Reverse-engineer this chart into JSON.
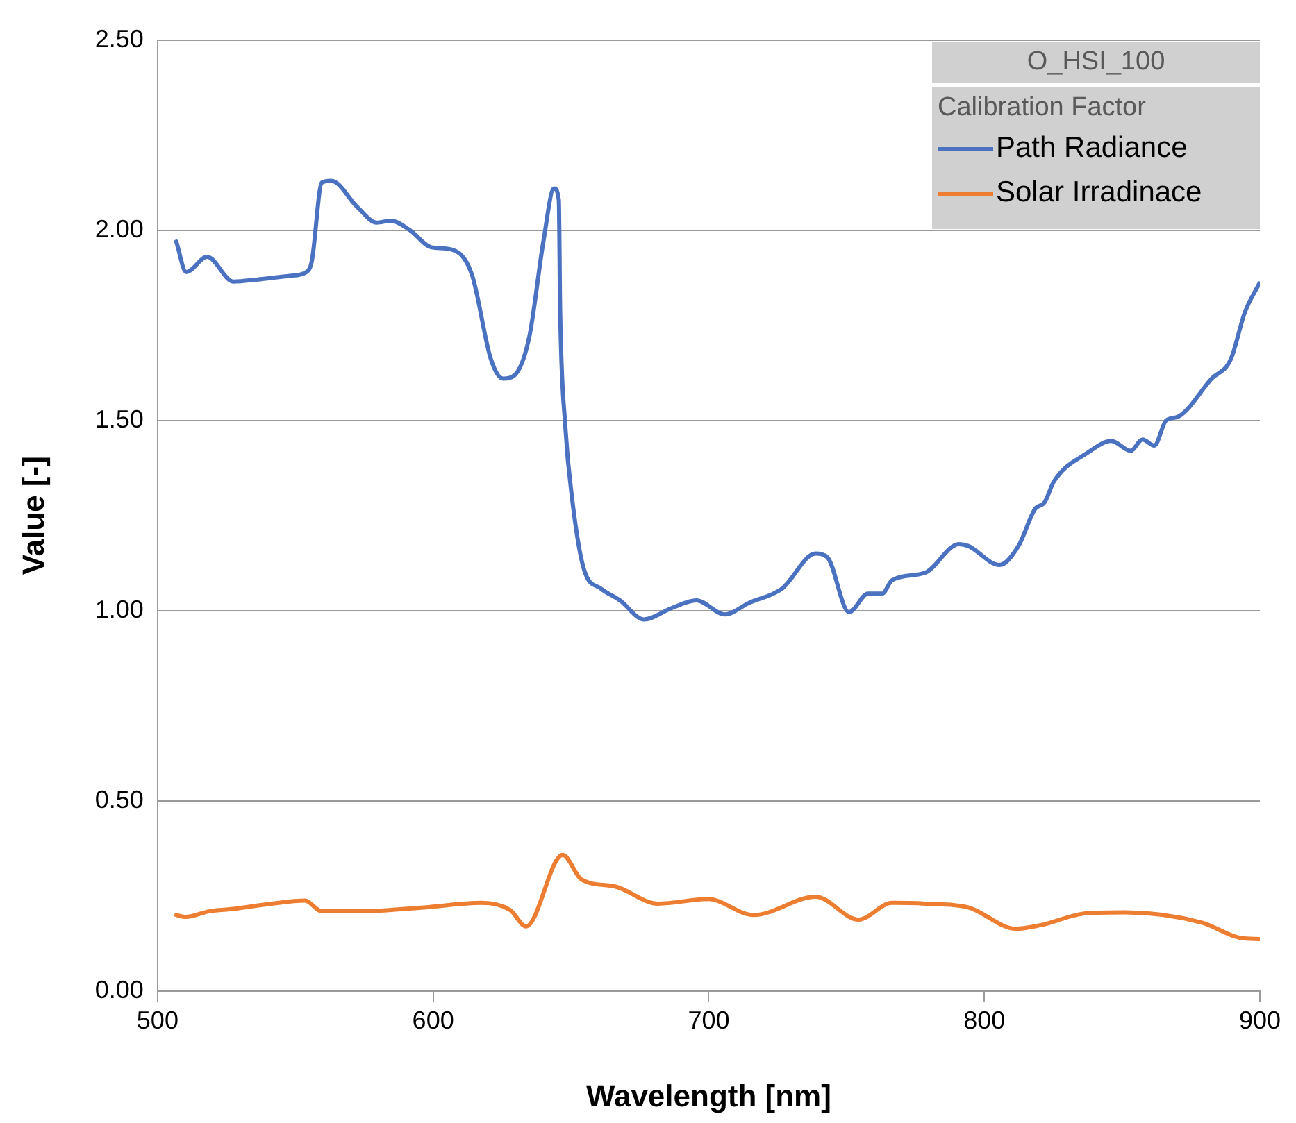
{
  "chart_data": {
    "type": "line",
    "title": "O_HSI_100",
    "legend_title": "Calibration Factor",
    "xlabel": "Wavelength [nm]",
    "ylabel": "Value [-]",
    "xlim": [
      500,
      900
    ],
    "xticks": [
      500,
      600,
      700,
      800,
      900
    ],
    "ylim": [
      0,
      2.5
    ],
    "yticks": [
      {
        "value": 0,
        "label": "0.00"
      },
      {
        "value": 0.5,
        "label": "0.50"
      },
      {
        "value": 1,
        "label": "1.00"
      },
      {
        "value": 1.5,
        "label": "1.50"
      },
      {
        "value": 2,
        "label": "2.00"
      },
      {
        "value": 2.5,
        "label": "2.50"
      }
    ],
    "grid": "y",
    "legend": "top right",
    "marker": "none",
    "line_style": "solid",
    "series": [
      {
        "name": "Path Radiance",
        "color": "#4a72c0",
        "x": [
          506.8,
          510.4,
          518,
          527.5,
          536,
          548,
          554,
          556,
          559.6,
          563,
          572.6,
          579.5,
          584.7,
          591.6,
          599.4,
          606.3,
          614,
          621,
          625.4,
          629.7,
          634.9,
          640,
          643.9,
          645.6,
          646.1,
          647.9,
          650.5,
          654.8,
          660.9,
          667.8,
          676.5,
          686.9,
          695.5,
          705.9,
          714.5,
          726.6,
          738.8,
          743.1,
          750.9,
          757.8,
          763,
          766.5,
          778.6,
          790.8,
          794.2,
          805.5,
          812.4,
          818.4,
          821.9,
          825.3,
          837.5,
          846.1,
          853.1,
          857.4,
          861.7,
          866,
          870.4,
          882.5,
          889.4,
          894.6,
          899.8
        ],
        "values": [
          1.97,
          1.89,
          1.93,
          1.865,
          1.87,
          1.88,
          1.89,
          1.92,
          2.125,
          2.13,
          2.06,
          2.02,
          2.025,
          2.0,
          1.955,
          1.95,
          1.885,
          1.66,
          1.61,
          1.62,
          1.72,
          1.97,
          2.11,
          2.08,
          1.785,
          1.49,
          1.29,
          1.107,
          1.058,
          1.027,
          0.977,
          1.008,
          1.027,
          0.99,
          1.02,
          1.058,
          1.15,
          1.14,
          0.996,
          1.045,
          1.045,
          1.08,
          1.1,
          1.175,
          1.17,
          1.12,
          1.17,
          1.267,
          1.285,
          1.34,
          1.415,
          1.446,
          1.42,
          1.45,
          1.434,
          1.5,
          1.51,
          1.61,
          1.66,
          1.785,
          1.86
        ]
      },
      {
        "name": "Solar Irradinace",
        "color": "#ed7d31",
        "x": [
          506.8,
          510.2,
          518.9,
          527.5,
          541.4,
          553.5,
          559.6,
          574.3,
          596.8,
          617.6,
          628,
          633.7,
          647,
          653.9,
          666,
          681.6,
          699.8,
          716.3,
          738.8,
          754.4,
          766.5,
          778.6,
          794.2,
          811.5,
          820.2,
          837.5,
          851.3,
          879,
          892.9,
          900
        ],
        "values": [
          0.2,
          0.195,
          0.21,
          0.216,
          0.23,
          0.238,
          0.21,
          0.21,
          0.22,
          0.232,
          0.213,
          0.17,
          0.358,
          0.293,
          0.275,
          0.23,
          0.242,
          0.2,
          0.248,
          0.188,
          0.232,
          0.23,
          0.22,
          0.164,
          0.173,
          0.205,
          0.207,
          0.18,
          0.14,
          0.137
        ]
      }
    ]
  }
}
